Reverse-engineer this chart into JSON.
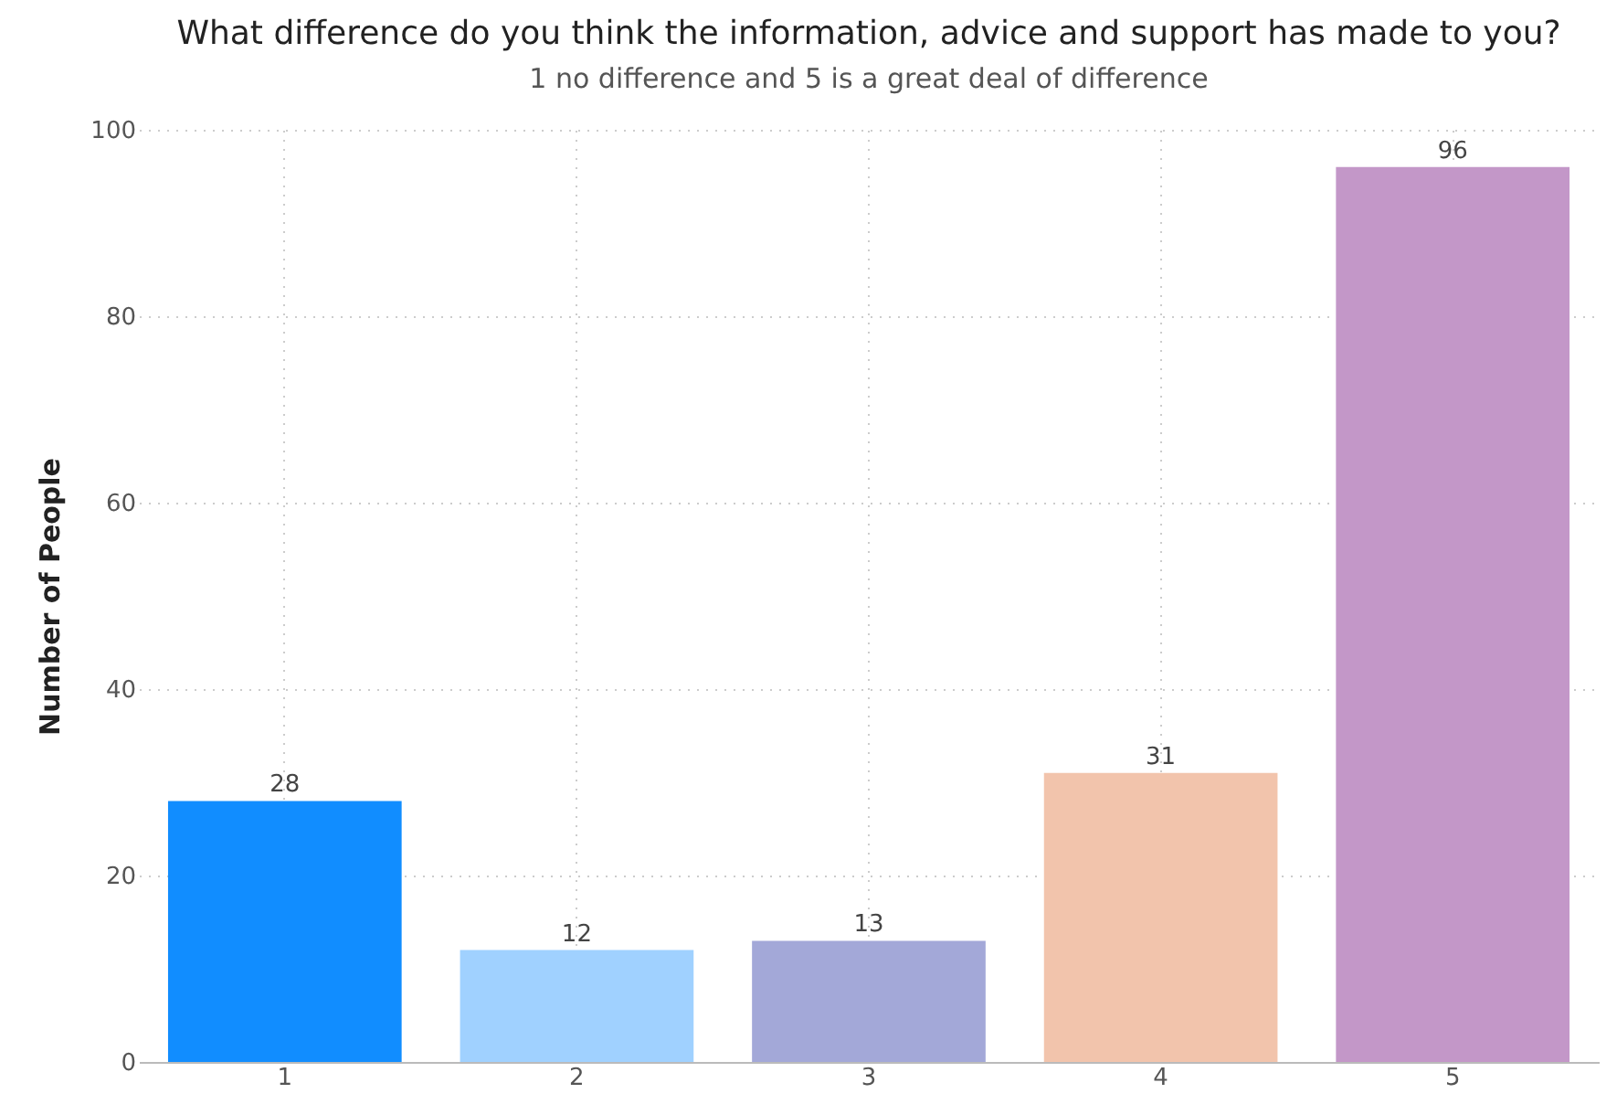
{
  "chart_data": {
    "type": "bar",
    "title": "What difference do you think the information, advice and support has made to you?",
    "subtitle": "1 no difference and 5 is a great deal of difference",
    "ylabel": "Number of People",
    "categories": [
      "1",
      "2",
      "3",
      "4",
      "5"
    ],
    "values": [
      28,
      12,
      13,
      31,
      96
    ],
    "colors": [
      "#118dff",
      "#a0d1ff",
      "#a3a8d8",
      "#f2c4ac",
      "#c397c8"
    ],
    "ylim": [
      0,
      100
    ],
    "yticks": [
      0,
      20,
      40,
      60,
      80,
      100
    ],
    "grid": true,
    "data_labels": true,
    "legend": false
  }
}
